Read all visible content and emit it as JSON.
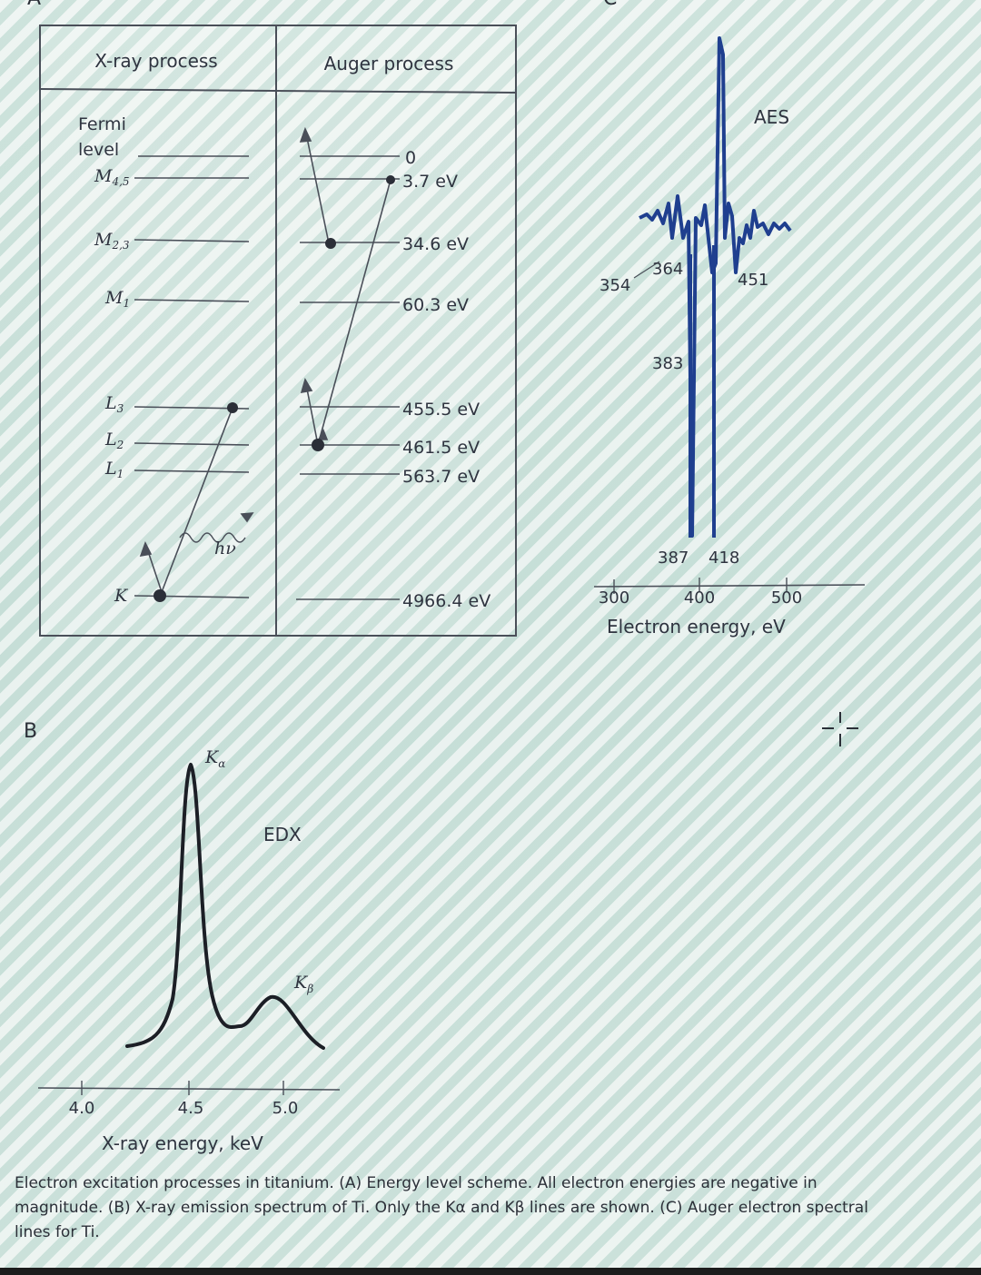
{
  "panels": {
    "a_letter": "A",
    "b_letter": "B",
    "c_letter": "C"
  },
  "panel_a": {
    "header_xray": "X-ray process",
    "header_auger": "Auger process",
    "levels": [
      {
        "label": "Fermi level",
        "energy": "0"
      },
      {
        "label": "M4,5",
        "energy": "3.7 eV"
      },
      {
        "label": "M2,3",
        "energy": "34.6 eV"
      },
      {
        "label": "M1",
        "energy": "60.3 eV"
      },
      {
        "label": "L3",
        "energy": "455.5 eV"
      },
      {
        "label": "L2",
        "energy": "461.5 eV"
      },
      {
        "label": "L1",
        "energy": "563.7 eV"
      },
      {
        "label": "K",
        "energy": "4966.4 eV"
      }
    ],
    "photon_label": "hν"
  },
  "panel_b": {
    "title": "EDX",
    "peak_alpha": "Kα",
    "peak_beta": "Kβ",
    "xlabel": "X-ray energy, keV",
    "ticks": [
      "4.0",
      "4.5",
      "5.0"
    ]
  },
  "panel_c": {
    "title": "AES",
    "xlabel": "Electron energy, eV",
    "ticks": [
      "300",
      "400",
      "500"
    ],
    "peak_labels": [
      "354",
      "364",
      "383",
      "387",
      "418",
      "451"
    ]
  },
  "chart_data": [
    {
      "type": "line",
      "title": "EDX",
      "xlabel": "X-ray energy, keV",
      "ylabel": "",
      "xlim": [
        4.0,
        5.0
      ],
      "peaks": [
        {
          "name": "Kα",
          "x": 4.51,
          "relative_height": 1.0
        },
        {
          "name": "Kβ",
          "x": 4.93,
          "relative_height": 0.2
        }
      ]
    },
    {
      "type": "line",
      "title": "AES",
      "xlabel": "Electron energy, eV",
      "ylabel": "",
      "xlim": [
        300,
        500
      ],
      "labelled_peaks_eV": [
        354,
        364,
        383,
        387,
        418,
        451
      ]
    }
  ],
  "caption": "Electron excitation processes in titanium. (A) Energy level scheme. All electron energies are negative in magnitude. (B) X-ray emission spectrum of Ti. Only the Kα and Kβ lines are shown. (C) Auger electron spectral lines for Ti.",
  "colors": {
    "spectrum": "#1f3f8f",
    "ink": "#2f3440"
  }
}
